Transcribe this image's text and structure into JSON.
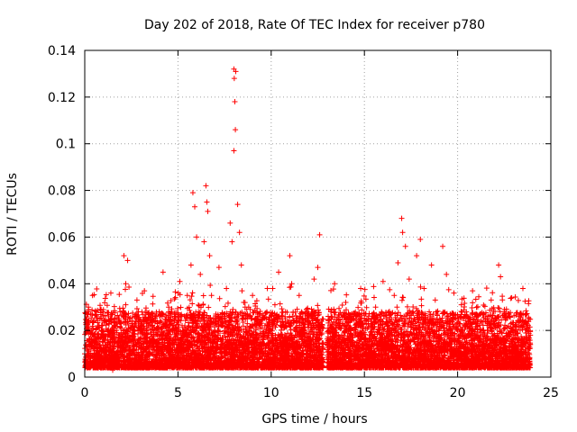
{
  "chart_data": {
    "type": "scatter",
    "title": "Day 202 of 2018, Rate Of TEC Index for receiver p780",
    "xlabel": "GPS time / hours",
    "ylabel": "ROTI / TECUs",
    "xlim": [
      0,
      25
    ],
    "ylim": [
      0,
      0.14
    ],
    "x_ticks": [
      0,
      5,
      10,
      15,
      20,
      25
    ],
    "x_tick_labels": [
      "0",
      "5",
      "10",
      "15",
      "20",
      "25"
    ],
    "y_ticks": [
      0,
      0.02,
      0.04,
      0.06,
      0.08,
      0.1,
      0.12,
      0.14
    ],
    "y_tick_labels": [
      "0",
      "0.02",
      "0.04",
      "0.06",
      "0.08",
      "0.1",
      "0.12",
      "0.14"
    ],
    "grid": true,
    "marker": "+",
    "color": "#ff0000",
    "series": [
      {
        "name": "ROTI",
        "points": [
          [
            0.0,
            0.01
          ],
          [
            0.1,
            0.013
          ],
          [
            0.2,
            0.03
          ],
          [
            0.3,
            0.008
          ],
          [
            0.5,
            0.015
          ],
          [
            0.7,
            0.022
          ],
          [
            0.9,
            0.011
          ],
          [
            1.0,
            0.018
          ],
          [
            1.2,
            0.009
          ],
          [
            1.4,
            0.036
          ],
          [
            1.5,
            0.003
          ],
          [
            1.7,
            0.02
          ],
          [
            1.9,
            0.028
          ],
          [
            2.0,
            0.014
          ],
          [
            2.1,
            0.052
          ],
          [
            2.2,
            0.04
          ],
          [
            2.3,
            0.05
          ],
          [
            2.4,
            0.025
          ],
          [
            2.6,
            0.012
          ],
          [
            2.8,
            0.033
          ],
          [
            3.0,
            0.019
          ],
          [
            3.2,
            0.037
          ],
          [
            3.4,
            0.01
          ],
          [
            3.6,
            0.024
          ],
          [
            3.8,
            0.015
          ],
          [
            4.0,
            0.028
          ],
          [
            4.2,
            0.045
          ],
          [
            4.3,
            0.013
          ],
          [
            4.5,
            0.03
          ],
          [
            4.7,
            0.02
          ],
          [
            4.8,
            0.008
          ],
          [
            5.0,
            0.026
          ],
          [
            5.1,
            0.041
          ],
          [
            5.3,
            0.017
          ],
          [
            5.5,
            0.035
          ],
          [
            5.7,
            0.048
          ],
          [
            5.8,
            0.079
          ],
          [
            5.9,
            0.073
          ],
          [
            6.0,
            0.06
          ],
          [
            6.1,
            0.028
          ],
          [
            6.2,
            0.044
          ],
          [
            6.3,
            0.018
          ],
          [
            6.4,
            0.058
          ],
          [
            6.5,
            0.082
          ],
          [
            6.55,
            0.075
          ],
          [
            6.6,
            0.071
          ],
          [
            6.7,
            0.052
          ],
          [
            6.8,
            0.035
          ],
          [
            7.0,
            0.025
          ],
          [
            7.2,
            0.047
          ],
          [
            7.4,
            0.012
          ],
          [
            7.6,
            0.038
          ],
          [
            7.8,
            0.066
          ],
          [
            7.9,
            0.058
          ],
          [
            8.0,
            0.132
          ],
          [
            8.02,
            0.128
          ],
          [
            8.05,
            0.118
          ],
          [
            8.08,
            0.106
          ],
          [
            8.1,
            0.131
          ],
          [
            8.0,
            0.097
          ],
          [
            8.2,
            0.074
          ],
          [
            8.3,
            0.062
          ],
          [
            8.4,
            0.048
          ],
          [
            8.6,
            0.03
          ],
          [
            8.8,
            0.02
          ],
          [
            9.0,
            0.035
          ],
          [
            9.2,
            0.015
          ],
          [
            9.4,
            0.027
          ],
          [
            9.6,
            0.01
          ],
          [
            9.8,
            0.022
          ],
          [
            10.0,
            0.018
          ],
          [
            10.2,
            0.031
          ],
          [
            10.4,
            0.045
          ],
          [
            10.6,
            0.026
          ],
          [
            10.8,
            0.013
          ],
          [
            11.0,
            0.052
          ],
          [
            11.1,
            0.04
          ],
          [
            11.3,
            0.021
          ],
          [
            11.5,
            0.035
          ],
          [
            11.7,
            0.016
          ],
          [
            11.9,
            0.029
          ],
          [
            12.1,
            0.011
          ],
          [
            12.3,
            0.042
          ],
          [
            12.5,
            0.047
          ],
          [
            12.6,
            0.061
          ],
          [
            12.7,
            0.024
          ],
          [
            13.0,
            0.015
          ],
          [
            13.2,
            0.028
          ],
          [
            13.4,
            0.04
          ],
          [
            13.6,
            0.018
          ],
          [
            13.8,
            0.01
          ],
          [
            14.0,
            0.032
          ],
          [
            14.2,
            0.021
          ],
          [
            14.4,
            0.013
          ],
          [
            14.6,
            0.027
          ],
          [
            14.8,
            0.038
          ],
          [
            15.0,
            0.016
          ],
          [
            15.2,
            0.024
          ],
          [
            15.4,
            0.009
          ],
          [
            15.6,
            0.03
          ],
          [
            15.8,
            0.019
          ],
          [
            16.0,
            0.041
          ],
          [
            16.2,
            0.025
          ],
          [
            16.4,
            0.014
          ],
          [
            16.6,
            0.035
          ],
          [
            16.8,
            0.049
          ],
          [
            17.0,
            0.068
          ],
          [
            17.05,
            0.062
          ],
          [
            17.2,
            0.056
          ],
          [
            17.4,
            0.042
          ],
          [
            17.6,
            0.028
          ],
          [
            17.8,
            0.052
          ],
          [
            18.0,
            0.059
          ],
          [
            18.2,
            0.038
          ],
          [
            18.4,
            0.022
          ],
          [
            18.6,
            0.048
          ],
          [
            18.8,
            0.033
          ],
          [
            19.0,
            0.017
          ],
          [
            19.2,
            0.056
          ],
          [
            19.4,
            0.044
          ],
          [
            19.6,
            0.027
          ],
          [
            19.8,
            0.036
          ],
          [
            20.0,
            0.02
          ],
          [
            20.2,
            0.031
          ],
          [
            20.4,
            0.012
          ],
          [
            20.6,
            0.025
          ],
          [
            20.8,
            0.037
          ],
          [
            21.0,
            0.018
          ],
          [
            21.2,
            0.027
          ],
          [
            21.4,
            0.01
          ],
          [
            21.6,
            0.023
          ],
          [
            21.8,
            0.033
          ],
          [
            22.0,
            0.016
          ],
          [
            22.2,
            0.048
          ],
          [
            22.3,
            0.043
          ],
          [
            22.5,
            0.028
          ],
          [
            22.7,
            0.019
          ],
          [
            22.9,
            0.034
          ],
          [
            23.1,
            0.011
          ],
          [
            23.3,
            0.026
          ],
          [
            23.5,
            0.038
          ],
          [
            23.7,
            0.021
          ],
          [
            23.9,
            0.014
          ]
        ]
      }
    ]
  }
}
